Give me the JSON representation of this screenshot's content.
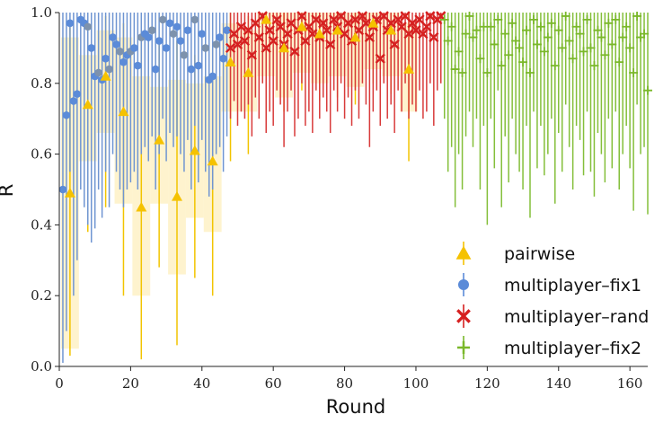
{
  "chart_data": {
    "type": "scatter",
    "title": "",
    "xlabel": "Round",
    "ylabel": "R",
    "xlim": [
      0,
      165
    ],
    "ylim": [
      0,
      1
    ],
    "xticks": [
      0,
      20,
      40,
      60,
      80,
      100,
      120,
      140,
      160
    ],
    "yticks": [
      0.0,
      0.2,
      0.4,
      0.6,
      0.8,
      1.0
    ],
    "xtick_labels": [
      "0",
      "20",
      "40",
      "60",
      "80",
      "100",
      "120",
      "140",
      "160"
    ],
    "ytick_labels": [
      "0.0",
      "0.2",
      "0.4",
      "0.6",
      "0.8",
      "1.0"
    ],
    "legend_position": "bottom-right",
    "series": [
      {
        "name": "pairwise",
        "color": "#f5c200",
        "marker": "triangle",
        "x": [
          3,
          8,
          13,
          18,
          23,
          28,
          33,
          38,
          43,
          48,
          53,
          58,
          63,
          68,
          73,
          78,
          83,
          88,
          93,
          98
        ],
        "y": [
          0.49,
          0.74,
          0.82,
          0.72,
          0.45,
          0.64,
          0.48,
          0.61,
          0.58,
          0.86,
          0.83,
          0.98,
          0.9,
          0.96,
          0.94,
          0.95,
          0.93,
          0.97,
          0.95,
          0.84
        ],
        "ci_low": [
          0.05,
          0.58,
          0.66,
          0.46,
          0.2,
          0.46,
          0.26,
          0.42,
          0.38,
          0.72,
          0.72,
          0.82,
          0.76,
          0.83,
          0.8,
          0.82,
          0.79,
          0.84,
          0.82,
          0.72
        ],
        "ci_high": [
          0.93,
          0.88,
          0.95,
          0.93,
          0.82,
          0.79,
          0.81,
          0.8,
          0.82,
          0.97,
          0.95,
          1.0,
          1.0,
          1.0,
          1.0,
          1.0,
          1.0,
          1.0,
          1.0,
          0.97
        ],
        "err_low": [
          0.03,
          0.38,
          0.45,
          0.2,
          0.02,
          0.28,
          0.06,
          0.25,
          0.2,
          0.58,
          0.6,
          0.7,
          0.72,
          0.78,
          0.75,
          0.76,
          0.74,
          0.8,
          0.77,
          0.58
        ],
        "err_high": [
          0.96,
          0.96,
          0.99,
          0.97,
          0.92,
          0.92,
          0.92,
          0.88,
          0.9,
          1.0,
          0.99,
          1.0,
          1.0,
          1.0,
          1.0,
          1.0,
          1.0,
          1.0,
          1.0,
          1.0
        ]
      },
      {
        "name": "multiplayer–fix1",
        "color": "#5b8bd8",
        "marker": "circle",
        "x": [
          1,
          2,
          3,
          4,
          5,
          6,
          7,
          8,
          9,
          10,
          11,
          12,
          13,
          14,
          15,
          16,
          17,
          18,
          19,
          20,
          21,
          22,
          23,
          24,
          25,
          26,
          27,
          28,
          29,
          30,
          31,
          32,
          33,
          34,
          35,
          36,
          37,
          38,
          39,
          40,
          41,
          42,
          43,
          44,
          45,
          46,
          47
        ],
        "y": [
          0.5,
          0.71,
          0.97,
          0.75,
          0.77,
          0.98,
          0.97,
          0.96,
          0.9,
          0.82,
          0.83,
          0.81,
          0.87,
          0.84,
          0.93,
          0.91,
          0.89,
          0.86,
          0.88,
          0.89,
          0.9,
          0.85,
          0.93,
          0.94,
          0.93,
          0.95,
          0.84,
          0.92,
          0.98,
          0.9,
          0.97,
          0.94,
          0.96,
          0.92,
          0.88,
          0.95,
          0.84,
          0.98,
          0.85,
          0.94,
          0.9,
          0.81,
          0.82,
          0.91,
          0.93,
          0.87,
          0.95
        ],
        "err_low": [
          0.01,
          0.1,
          0.55,
          0.2,
          0.3,
          0.5,
          0.45,
          0.4,
          0.35,
          0.39,
          0.5,
          0.42,
          0.55,
          0.45,
          0.6,
          0.55,
          0.5,
          0.45,
          0.5,
          0.52,
          0.55,
          0.5,
          0.6,
          0.62,
          0.58,
          0.65,
          0.5,
          0.6,
          0.7,
          0.58,
          0.66,
          0.62,
          0.65,
          0.6,
          0.55,
          0.64,
          0.5,
          0.68,
          0.52,
          0.64,
          0.55,
          0.48,
          0.5,
          0.6,
          0.62,
          0.55,
          0.65
        ],
        "err_high": [
          1.0,
          1.0,
          1.0,
          1.0,
          1.0,
          1.0,
          1.0,
          1.0,
          1.0,
          1.0,
          1.0,
          1.0,
          1.0,
          1.0,
          1.0,
          1.0,
          1.0,
          1.0,
          1.0,
          1.0,
          1.0,
          1.0,
          1.0,
          1.0,
          1.0,
          1.0,
          1.0,
          1.0,
          1.0,
          1.0,
          1.0,
          1.0,
          1.0,
          1.0,
          1.0,
          1.0,
          1.0,
          1.0,
          1.0,
          1.0,
          1.0,
          1.0,
          1.0,
          1.0,
          1.0,
          1.0,
          1.0
        ]
      },
      {
        "name": "multiplayer–rand",
        "color": "#d62020",
        "marker": "x",
        "x": [
          48,
          49,
          50,
          51,
          52,
          53,
          54,
          55,
          56,
          57,
          58,
          59,
          60,
          61,
          62,
          63,
          64,
          65,
          66,
          67,
          68,
          69,
          70,
          71,
          72,
          73,
          74,
          75,
          76,
          77,
          78,
          79,
          80,
          81,
          82,
          83,
          84,
          85,
          86,
          87,
          88,
          89,
          90,
          91,
          92,
          93,
          94,
          95,
          96,
          97,
          98,
          99,
          100,
          101,
          102,
          103,
          104,
          105,
          106,
          107
        ],
        "y": [
          0.9,
          0.94,
          0.91,
          0.96,
          0.92,
          0.95,
          0.88,
          0.97,
          0.93,
          0.99,
          0.9,
          0.95,
          0.92,
          0.98,
          0.96,
          0.91,
          0.94,
          0.97,
          0.89,
          0.95,
          0.99,
          0.92,
          0.96,
          0.94,
          0.98,
          0.93,
          0.97,
          0.95,
          0.91,
          0.98,
          0.96,
          0.99,
          0.94,
          0.97,
          0.92,
          0.98,
          0.95,
          0.99,
          0.97,
          0.93,
          0.96,
          0.98,
          0.87,
          0.99,
          0.95,
          0.97,
          0.91,
          0.98,
          0.96,
          0.99,
          0.94,
          0.97,
          0.95,
          0.98,
          0.94,
          0.96,
          0.99,
          0.93,
          0.98,
          0.99
        ],
        "err_low": [
          0.7,
          0.75,
          0.68,
          0.72,
          0.7,
          0.74,
          0.65,
          0.76,
          0.7,
          0.8,
          0.66,
          0.72,
          0.68,
          0.78,
          0.74,
          0.62,
          0.72,
          0.78,
          0.65,
          0.7,
          0.8,
          0.68,
          0.72,
          0.66,
          0.78,
          0.7,
          0.76,
          0.72,
          0.66,
          0.78,
          0.72,
          0.8,
          0.7,
          0.76,
          0.68,
          0.78,
          0.7,
          0.8,
          0.74,
          0.62,
          0.72,
          0.78,
          0.68,
          0.8,
          0.7,
          0.74,
          0.66,
          0.78,
          0.72,
          0.8,
          0.7,
          0.74,
          0.72,
          0.78,
          0.7,
          0.72,
          0.8,
          0.68,
          0.78,
          0.8
        ],
        "err_high": [
          1.0,
          1.0,
          1.0,
          1.0,
          1.0,
          1.0,
          1.0,
          1.0,
          1.0,
          1.0,
          1.0,
          1.0,
          1.0,
          1.0,
          1.0,
          1.0,
          1.0,
          1.0,
          1.0,
          1.0,
          1.0,
          1.0,
          1.0,
          1.0,
          1.0,
          1.0,
          1.0,
          1.0,
          1.0,
          1.0,
          1.0,
          1.0,
          1.0,
          1.0,
          1.0,
          1.0,
          1.0,
          1.0,
          1.0,
          1.0,
          1.0,
          1.0,
          1.0,
          1.0,
          1.0,
          1.0,
          1.0,
          1.0,
          1.0,
          1.0,
          1.0,
          1.0,
          1.0,
          1.0,
          1.0,
          1.0,
          1.0,
          1.0,
          1.0,
          1.0
        ]
      },
      {
        "name": "multiplayer–fix2",
        "color": "#7ab82a",
        "marker": "plus",
        "x": [
          108,
          109,
          110,
          111,
          112,
          113,
          114,
          115,
          116,
          117,
          118,
          119,
          120,
          121,
          122,
          123,
          124,
          125,
          126,
          127,
          128,
          129,
          130,
          131,
          132,
          133,
          134,
          135,
          136,
          137,
          138,
          139,
          140,
          141,
          142,
          143,
          144,
          145,
          146,
          147,
          148,
          149,
          150,
          151,
          152,
          153,
          154,
          155,
          156,
          157,
          158,
          159,
          160,
          161,
          162,
          163,
          164,
          165
        ],
        "y": [
          0.98,
          0.92,
          0.96,
          0.84,
          0.89,
          0.83,
          0.94,
          0.99,
          0.93,
          0.95,
          0.87,
          0.96,
          0.83,
          0.96,
          0.91,
          0.98,
          0.85,
          0.94,
          0.88,
          0.97,
          0.92,
          0.9,
          0.86,
          0.95,
          0.83,
          0.98,
          0.91,
          0.96,
          0.89,
          0.93,
          0.97,
          0.85,
          0.95,
          0.9,
          0.99,
          0.92,
          0.87,
          0.96,
          0.94,
          0.89,
          0.98,
          0.9,
          0.85,
          0.95,
          0.93,
          0.88,
          0.97,
          0.91,
          0.98,
          0.86,
          0.93,
          0.96,
          0.9,
          0.83,
          0.99,
          0.93,
          0.94,
          0.78
        ],
        "err_low": [
          0.7,
          0.55,
          0.62,
          0.45,
          0.6,
          0.5,
          0.65,
          0.72,
          0.62,
          0.7,
          0.5,
          0.68,
          0.4,
          0.7,
          0.56,
          0.78,
          0.45,
          0.65,
          0.52,
          0.7,
          0.6,
          0.55,
          0.5,
          0.68,
          0.42,
          0.72,
          0.56,
          0.68,
          0.54,
          0.6,
          0.7,
          0.46,
          0.66,
          0.55,
          0.74,
          0.62,
          0.5,
          0.68,
          0.64,
          0.54,
          0.72,
          0.55,
          0.48,
          0.66,
          0.6,
          0.52,
          0.7,
          0.56,
          0.72,
          0.5,
          0.6,
          0.68,
          0.56,
          0.44,
          0.74,
          0.6,
          0.62,
          0.43
        ],
        "err_high": [
          1.0,
          1.0,
          1.0,
          1.0,
          1.0,
          1.0,
          1.0,
          1.0,
          1.0,
          1.0,
          1.0,
          1.0,
          1.0,
          1.0,
          1.0,
          1.0,
          1.0,
          1.0,
          1.0,
          1.0,
          1.0,
          1.0,
          1.0,
          1.0,
          1.0,
          1.0,
          1.0,
          1.0,
          1.0,
          1.0,
          1.0,
          1.0,
          1.0,
          1.0,
          1.0,
          1.0,
          1.0,
          1.0,
          1.0,
          1.0,
          1.0,
          1.0,
          1.0,
          1.0,
          1.0,
          1.0,
          1.0,
          1.0,
          1.0,
          1.0,
          1.0,
          1.0,
          1.0,
          1.0,
          1.0,
          1.0,
          1.0,
          1.0
        ]
      }
    ]
  }
}
